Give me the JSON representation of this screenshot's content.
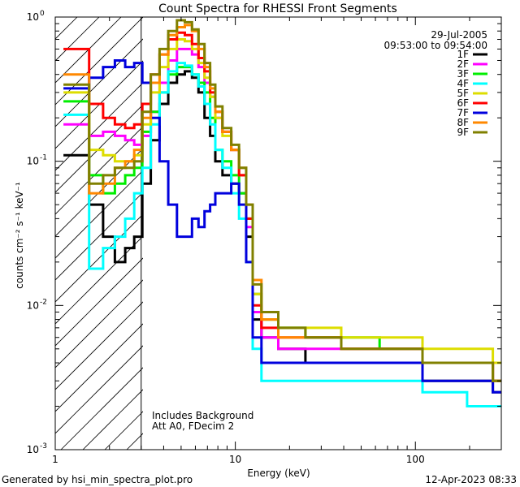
{
  "chart_data": {
    "type": "line",
    "title": "Count Spectra for RHESSI Front Segments",
    "xlabel": "Energy (keV)",
    "ylabel": "counts cm⁻² s⁻¹ keV⁻¹",
    "xscale": "log",
    "yscale": "log",
    "xlim": [
      1,
      300
    ],
    "ylim": [
      0.001,
      1
    ],
    "x_tick_labels": [
      {
        "value": 1,
        "label": "1"
      },
      {
        "value": 10,
        "label": "10"
      },
      {
        "value": 100,
        "label": "100"
      }
    ],
    "y_tick_labels": [
      {
        "value": 1,
        "base": "10",
        "exp": "0"
      },
      {
        "value": 0.1,
        "base": "10",
        "exp": "-1"
      },
      {
        "value": 0.01,
        "base": "10",
        "exp": "-2"
      },
      {
        "value": 0.001,
        "base": "10",
        "exp": "-3"
      }
    ],
    "date": "29-Jul-2005",
    "time_range": "09:53:00 to 09:54:00",
    "annotations": [
      "Includes Background",
      "Att A0, FDecim 2"
    ],
    "shaded_region_keV": [
      1,
      3
    ],
    "legend_position": "top-right",
    "series": [
      {
        "name": "1F",
        "color": "#000000",
        "points": [
          [
            1.2,
            0.11
          ],
          [
            1.4,
            0.11
          ],
          [
            1.7,
            0.05
          ],
          [
            2.0,
            0.03
          ],
          [
            2.3,
            0.02
          ],
          [
            2.6,
            0.025
          ],
          [
            2.9,
            0.03
          ],
          [
            3.2,
            0.07
          ],
          [
            3.6,
            0.14
          ],
          [
            4.0,
            0.25
          ],
          [
            4.5,
            0.35
          ],
          [
            5.0,
            0.4
          ],
          [
            5.5,
            0.42
          ],
          [
            6.0,
            0.38
          ],
          [
            6.5,
            0.3
          ],
          [
            7.0,
            0.2
          ],
          [
            7.5,
            0.15
          ],
          [
            8.0,
            0.1
          ],
          [
            9.0,
            0.08
          ],
          [
            10.0,
            0.07
          ],
          [
            11.0,
            0.06
          ],
          [
            12.0,
            0.03
          ],
          [
            13.0,
            0.008
          ],
          [
            15.0,
            0.006
          ],
          [
            20.0,
            0.005
          ],
          [
            30.0,
            0.004
          ],
          [
            50.0,
            0.004
          ],
          [
            80.0,
            0.004
          ],
          [
            150.0,
            0.003
          ],
          [
            250.0,
            0.003
          ],
          [
            290.0,
            0.0025
          ]
        ]
      },
      {
        "name": "2F",
        "color": "#ff00ff",
        "points": [
          [
            1.2,
            0.18
          ],
          [
            1.4,
            0.18
          ],
          [
            1.7,
            0.15
          ],
          [
            2.0,
            0.16
          ],
          [
            2.3,
            0.15
          ],
          [
            2.6,
            0.14
          ],
          [
            2.9,
            0.13
          ],
          [
            3.2,
            0.15
          ],
          [
            3.6,
            0.22
          ],
          [
            4.0,
            0.35
          ],
          [
            4.5,
            0.5
          ],
          [
            5.0,
            0.6
          ],
          [
            5.5,
            0.6
          ],
          [
            6.0,
            0.55
          ],
          [
            6.5,
            0.45
          ],
          [
            7.0,
            0.35
          ],
          [
            7.5,
            0.28
          ],
          [
            8.0,
            0.2
          ],
          [
            9.0,
            0.16
          ],
          [
            10.0,
            0.12
          ],
          [
            11.0,
            0.08
          ],
          [
            12.0,
            0.035
          ],
          [
            13.0,
            0.009
          ],
          [
            15.0,
            0.006
          ],
          [
            20.0,
            0.005
          ],
          [
            30.0,
            0.005
          ],
          [
            50.0,
            0.005
          ],
          [
            80.0,
            0.005
          ],
          [
            150.0,
            0.004
          ],
          [
            250.0,
            0.004
          ],
          [
            290.0,
            0.003
          ]
        ]
      },
      {
        "name": "3F",
        "color": "#00ee00",
        "points": [
          [
            1.2,
            0.26
          ],
          [
            1.4,
            0.26
          ],
          [
            1.7,
            0.08
          ],
          [
            2.0,
            0.06
          ],
          [
            2.3,
            0.07
          ],
          [
            2.6,
            0.08
          ],
          [
            2.9,
            0.09
          ],
          [
            3.2,
            0.16
          ],
          [
            3.6,
            0.22
          ],
          [
            4.0,
            0.3
          ],
          [
            4.5,
            0.4
          ],
          [
            5.0,
            0.45
          ],
          [
            5.5,
            0.45
          ],
          [
            6.0,
            0.4
          ],
          [
            6.5,
            0.35
          ],
          [
            7.0,
            0.3
          ],
          [
            7.5,
            0.2
          ],
          [
            8.0,
            0.12
          ],
          [
            9.0,
            0.1
          ],
          [
            10.0,
            0.08
          ],
          [
            11.0,
            0.06
          ],
          [
            12.0,
            0.04
          ],
          [
            13.0,
            0.012
          ],
          [
            15.0,
            0.008
          ],
          [
            20.0,
            0.007
          ],
          [
            30.0,
            0.006
          ],
          [
            50.0,
            0.006
          ],
          [
            80.0,
            0.005
          ],
          [
            150.0,
            0.004
          ],
          [
            250.0,
            0.004
          ],
          [
            290.0,
            0.003
          ]
        ]
      },
      {
        "name": "4F",
        "color": "#00ffff",
        "points": [
          [
            1.2,
            0.21
          ],
          [
            1.4,
            0.21
          ],
          [
            1.7,
            0.018
          ],
          [
            2.0,
            0.025
          ],
          [
            2.3,
            0.03
          ],
          [
            2.6,
            0.04
          ],
          [
            2.9,
            0.06
          ],
          [
            3.2,
            0.09
          ],
          [
            3.6,
            0.18
          ],
          [
            4.0,
            0.3
          ],
          [
            4.5,
            0.42
          ],
          [
            5.0,
            0.48
          ],
          [
            5.5,
            0.46
          ],
          [
            6.0,
            0.4
          ],
          [
            6.5,
            0.33
          ],
          [
            7.0,
            0.25
          ],
          [
            7.5,
            0.18
          ],
          [
            8.0,
            0.12
          ],
          [
            9.0,
            0.09
          ],
          [
            10.0,
            0.06
          ],
          [
            11.0,
            0.04
          ],
          [
            12.0,
            0.02
          ],
          [
            13.0,
            0.005
          ],
          [
            15.0,
            0.003
          ],
          [
            20.0,
            0.003
          ],
          [
            30.0,
            0.003
          ],
          [
            50.0,
            0.003
          ],
          [
            80.0,
            0.003
          ],
          [
            150.0,
            0.0025
          ],
          [
            250.0,
            0.002
          ],
          [
            290.0,
            0.002
          ]
        ]
      },
      {
        "name": "5F",
        "color": "#dddd00",
        "points": [
          [
            1.2,
            0.3
          ],
          [
            1.4,
            0.3
          ],
          [
            1.7,
            0.12
          ],
          [
            2.0,
            0.11
          ],
          [
            2.3,
            0.1
          ],
          [
            2.6,
            0.1
          ],
          [
            2.9,
            0.11
          ],
          [
            3.2,
            0.18
          ],
          [
            3.6,
            0.3
          ],
          [
            4.0,
            0.45
          ],
          [
            4.5,
            0.6
          ],
          [
            5.0,
            0.7
          ],
          [
            5.5,
            0.68
          ],
          [
            6.0,
            0.6
          ],
          [
            6.5,
            0.48
          ],
          [
            7.0,
            0.38
          ],
          [
            7.5,
            0.28
          ],
          [
            8.0,
            0.2
          ],
          [
            9.0,
            0.15
          ],
          [
            10.0,
            0.12
          ],
          [
            11.0,
            0.08
          ],
          [
            12.0,
            0.04
          ],
          [
            13.0,
            0.012
          ],
          [
            15.0,
            0.008
          ],
          [
            20.0,
            0.007
          ],
          [
            30.0,
            0.007
          ],
          [
            50.0,
            0.006
          ],
          [
            80.0,
            0.006
          ],
          [
            150.0,
            0.005
          ],
          [
            250.0,
            0.005
          ],
          [
            290.0,
            0.004
          ]
        ]
      },
      {
        "name": "6F",
        "color": "#ff0000",
        "points": [
          [
            1.2,
            0.6
          ],
          [
            1.4,
            0.6
          ],
          [
            1.7,
            0.25
          ],
          [
            2.0,
            0.2
          ],
          [
            2.3,
            0.18
          ],
          [
            2.6,
            0.17
          ],
          [
            2.9,
            0.18
          ],
          [
            3.2,
            0.25
          ],
          [
            3.6,
            0.4
          ],
          [
            4.0,
            0.55
          ],
          [
            4.5,
            0.7
          ],
          [
            5.0,
            0.78
          ],
          [
            5.5,
            0.75
          ],
          [
            6.0,
            0.65
          ],
          [
            6.5,
            0.52
          ],
          [
            7.0,
            0.42
          ],
          [
            7.5,
            0.3
          ],
          [
            8.0,
            0.22
          ],
          [
            9.0,
            0.16
          ],
          [
            10.0,
            0.12
          ],
          [
            11.0,
            0.08
          ],
          [
            12.0,
            0.04
          ],
          [
            13.0,
            0.01
          ],
          [
            15.0,
            0.007
          ],
          [
            20.0,
            0.006
          ],
          [
            30.0,
            0.006
          ],
          [
            50.0,
            0.005
          ],
          [
            80.0,
            0.005
          ],
          [
            150.0,
            0.004
          ],
          [
            250.0,
            0.004
          ],
          [
            290.0,
            0.003
          ]
        ]
      },
      {
        "name": "7F",
        "color": "#0000dd",
        "points": [
          [
            1.2,
            0.32
          ],
          [
            1.4,
            0.32
          ],
          [
            1.7,
            0.38
          ],
          [
            2.0,
            0.45
          ],
          [
            2.3,
            0.5
          ],
          [
            2.6,
            0.45
          ],
          [
            2.9,
            0.48
          ],
          [
            3.2,
            0.35
          ],
          [
            3.6,
            0.2
          ],
          [
            4.0,
            0.1
          ],
          [
            4.5,
            0.05
          ],
          [
            5.0,
            0.03
          ],
          [
            5.5,
            0.03
          ],
          [
            6.0,
            0.04
          ],
          [
            6.5,
            0.035
          ],
          [
            7.0,
            0.045
          ],
          [
            7.5,
            0.05
          ],
          [
            8.0,
            0.06
          ],
          [
            9.0,
            0.06
          ],
          [
            10.0,
            0.07
          ],
          [
            11.0,
            0.05
          ],
          [
            12.0,
            0.02
          ],
          [
            13.0,
            0.006
          ],
          [
            15.0,
            0.004
          ],
          [
            20.0,
            0.004
          ],
          [
            30.0,
            0.004
          ],
          [
            50.0,
            0.004
          ],
          [
            80.0,
            0.004
          ],
          [
            150.0,
            0.003
          ],
          [
            250.0,
            0.003
          ],
          [
            290.0,
            0.0025
          ]
        ]
      },
      {
        "name": "8F",
        "color": "#ff8800",
        "points": [
          [
            1.2,
            0.4
          ],
          [
            1.4,
            0.4
          ],
          [
            1.7,
            0.06
          ],
          [
            2.0,
            0.07
          ],
          [
            2.3,
            0.09
          ],
          [
            2.6,
            0.1
          ],
          [
            2.9,
            0.12
          ],
          [
            3.2,
            0.2
          ],
          [
            3.6,
            0.35
          ],
          [
            4.0,
            0.55
          ],
          [
            4.5,
            0.75
          ],
          [
            5.0,
            0.85
          ],
          [
            5.5,
            0.88
          ],
          [
            6.0,
            0.8
          ],
          [
            6.5,
            0.6
          ],
          [
            7.0,
            0.45
          ],
          [
            7.5,
            0.32
          ],
          [
            8.0,
            0.22
          ],
          [
            9.0,
            0.16
          ],
          [
            10.0,
            0.12
          ],
          [
            11.0,
            0.09
          ],
          [
            12.0,
            0.05
          ],
          [
            13.0,
            0.015
          ],
          [
            15.0,
            0.008
          ],
          [
            20.0,
            0.006
          ],
          [
            30.0,
            0.006
          ],
          [
            50.0,
            0.005
          ],
          [
            80.0,
            0.005
          ],
          [
            150.0,
            0.004
          ],
          [
            250.0,
            0.004
          ],
          [
            290.0,
            0.003
          ]
        ]
      },
      {
        "name": "9F",
        "color": "#808000",
        "points": [
          [
            1.2,
            0.34
          ],
          [
            1.4,
            0.34
          ],
          [
            1.7,
            0.07
          ],
          [
            2.0,
            0.08
          ],
          [
            2.3,
            0.09
          ],
          [
            2.6,
            0.09
          ],
          [
            2.9,
            0.1
          ],
          [
            3.2,
            0.22
          ],
          [
            3.6,
            0.4
          ],
          [
            4.0,
            0.6
          ],
          [
            4.5,
            0.8
          ],
          [
            5.0,
            0.95
          ],
          [
            5.5,
            0.92
          ],
          [
            6.0,
            0.82
          ],
          [
            6.5,
            0.65
          ],
          [
            7.0,
            0.48
          ],
          [
            7.5,
            0.34
          ],
          [
            8.0,
            0.24
          ],
          [
            9.0,
            0.17
          ],
          [
            10.0,
            0.13
          ],
          [
            11.0,
            0.09
          ],
          [
            12.0,
            0.05
          ],
          [
            13.0,
            0.014
          ],
          [
            15.0,
            0.009
          ],
          [
            20.0,
            0.007
          ],
          [
            30.0,
            0.006
          ],
          [
            50.0,
            0.005
          ],
          [
            80.0,
            0.005
          ],
          [
            150.0,
            0.004
          ],
          [
            250.0,
            0.004
          ],
          [
            290.0,
            0.003
          ]
        ]
      }
    ]
  },
  "footer": {
    "left": "Generated by hsi_min_spectra_plot.pro",
    "right": "12-Apr-2023 08:33"
  }
}
